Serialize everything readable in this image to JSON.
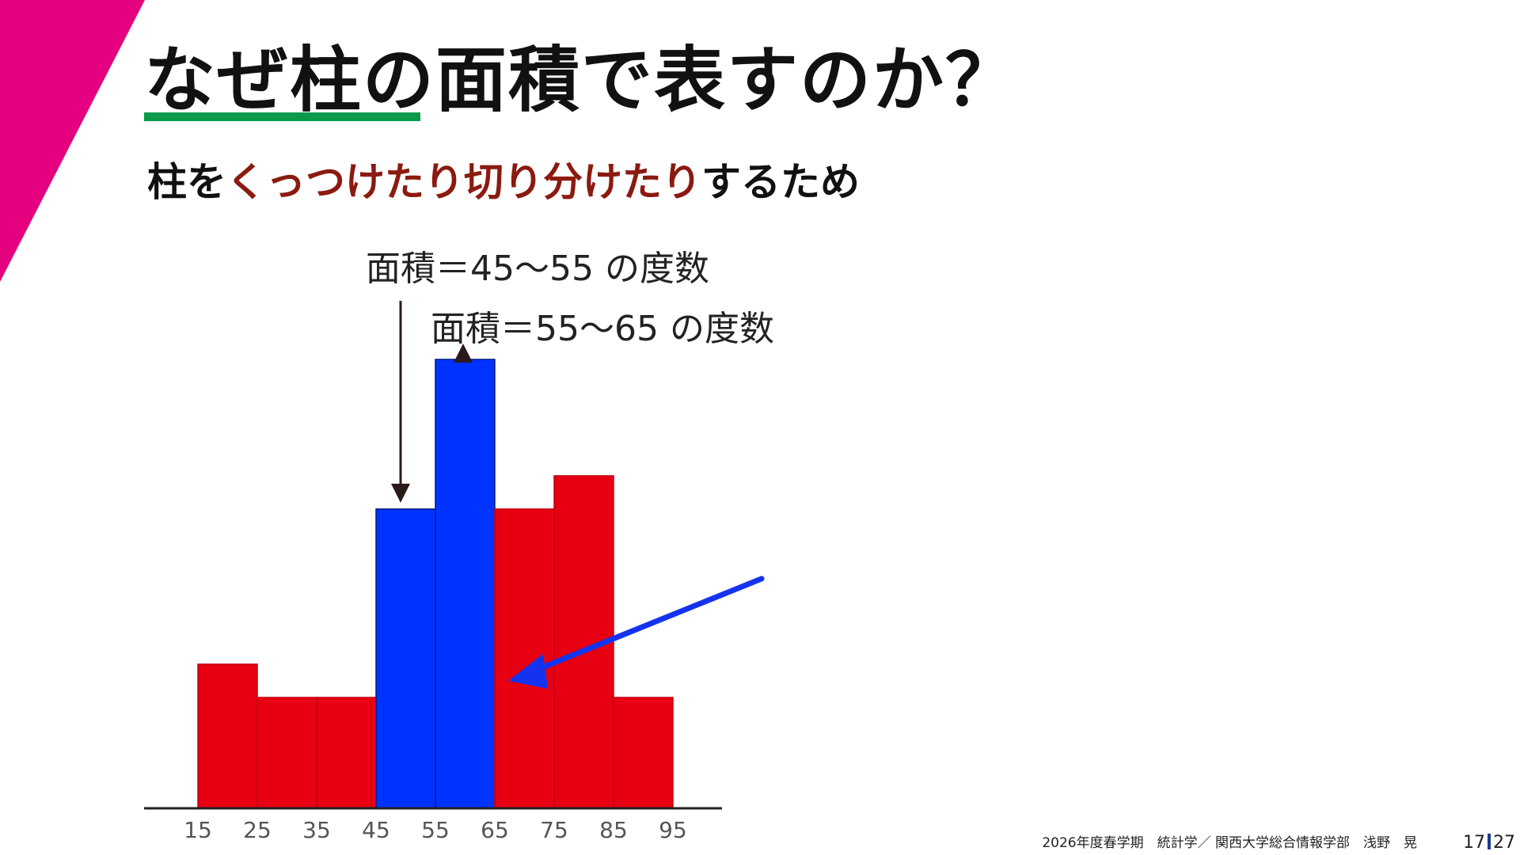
{
  "slide": {
    "title": "なぜ柱の面積で表すのか？",
    "subtitle_before": "柱を",
    "subtitle_highlight": "くっつけたり切り分けたり",
    "subtitle_after": "するため",
    "accent_colors": {
      "stripe": "#e4007f",
      "underline": "#0a9a4a",
      "highlight_text": "#8b1a10"
    }
  },
  "chart_data": {
    "type": "bar",
    "bin_edges": [
      15,
      25,
      35,
      45,
      55,
      65,
      75,
      85,
      95
    ],
    "tick_labels": [
      "15",
      "25",
      "35",
      "45",
      "55",
      "65",
      "75",
      "85",
      "95"
    ],
    "values": [
      1.3,
      1.0,
      1.0,
      2.7,
      4.05,
      2.7,
      3.0,
      1.0
    ],
    "ylim": [
      0,
      4.5
    ],
    "bar_colors": [
      "#e60012",
      "#e60012",
      "#e60012",
      "#0033ff",
      "#0033ff",
      "#e60012",
      "#e60012",
      "#e60012"
    ],
    "annotations": [
      {
        "text": "面積＝45～55 の度数",
        "target_bin": 3
      },
      {
        "text": "面積＝55～65 の度数",
        "target_bin": 4
      }
    ],
    "highlight_arrow_color": "#1533ee"
  },
  "footer": {
    "course": "2026年度春学期　統計学／ 関西大学総合情報学部　浅野　晃",
    "page_current": "17",
    "page_total": "27"
  }
}
